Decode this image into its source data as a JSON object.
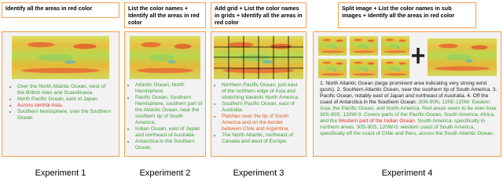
{
  "panels": [
    {
      "prompt": "Identify all the areas in red color",
      "items": [
        {
          "text": "Over the North Atlantic Ocean, west of the British Isles and Scandinavia.",
          "color": "#3f9a35"
        },
        {
          "text": "North Pacific Ocean, east of Japan.",
          "color": "#3f9a35"
        },
        {
          "text": "Across central Asia.",
          "color": "#e03020"
        },
        {
          "text": "Southern hemisphere, over the Southern Ocean",
          "color": "#3f9a35"
        }
      ],
      "caption": "Experiment 1"
    },
    {
      "prompt": "List the color names + Identify all the areas in red color",
      "items": [
        {
          "text": "Atlantic Ocean, North Hemisphere",
          "color": "#3f9a35"
        },
        {
          "text": "Pacific Ocean, Southern Hemisphere, southern part of the Atlantic Ocean, near the southern tip of South America.",
          "color": "#3f9a35"
        },
        {
          "text": "Indian Ocean, east of Japan and northeast of Australia.",
          "color": "#3f9a35"
        },
        {
          "text": "Antarctica in the Southern Ocean.",
          "color": "#3f9a35"
        }
      ],
      "caption": "Experiment 2"
    },
    {
      "prompt": "Add grid + List the color names in grids + Identify all the areas in red color",
      "items": [
        {
          "text": "Northern Pacific Ocean, just east of the northern edge of Asia and stretching towards North America.",
          "color": "#3f9a35"
        },
        {
          "text": "Southern Pacific Ocean, east of Australia.",
          "color": "#3f9a35"
        },
        {
          "text": "Patches near the tip of South America and on the border between Chile and Argentina.",
          "color": "#e05a20"
        },
        {
          "text": "The North Atlantic, northeast of Canada and west of Europe.",
          "color": "#3f9a35"
        }
      ],
      "caption": "Experiment 3"
    },
    {
      "prompt": "Split image + List the color names in sub images + Identify all the areas in red color",
      "segments": [
        {
          "text": "1. North Atlantic Ocean (large prominent area indicating very strong wind gusts). 2. Southern Atlantic Ocean, near the southern tip of South America. 3. Pacific Ocean, notably east of Japan and northeast of Australia. 4. Off the coast of Antarctica in the Southern Ocean.",
          "color": "#222222"
        },
        {
          "text": " 30N-90N, 120E-120W: Eastern Asia, the Pacific Ocean, and North America. Red areas seem to be over Asia. 30S-90S, 120W-0: Covers parts of the Pacific Ocean, South America, Africa, and the ",
          "color": "#3f9a35"
        },
        {
          "text": "Western part of the Indian Ocean.",
          "color": "#e03020"
        },
        {
          "text": " South America, specifically in northern areas. 30S-90S, 120W-0: western coast of South America, specifically off the coast of Chile and Peru, across the South Atlantic Ocean.",
          "color": "#3f9a35"
        }
      ],
      "caption": "Experiment 4"
    }
  ]
}
